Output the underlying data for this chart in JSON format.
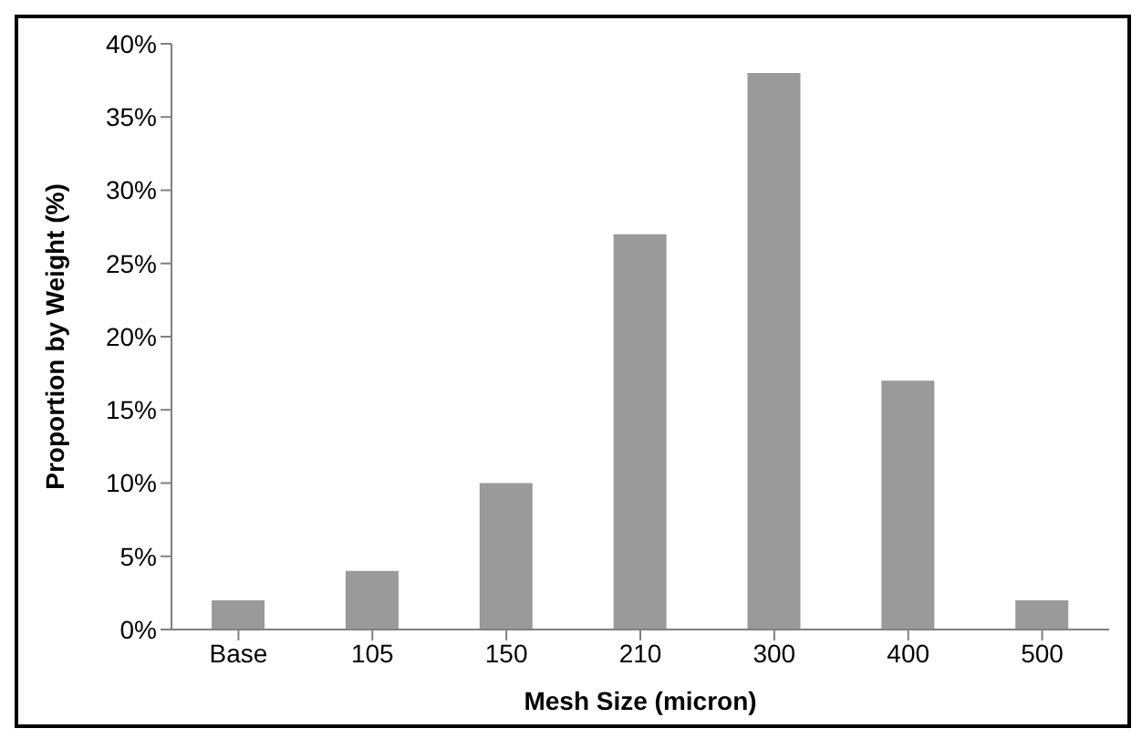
{
  "chart_data": {
    "type": "bar",
    "xlabel": "Mesh Size (micron)",
    "ylabel": "Proportion by Weight (%)",
    "categories": [
      "Base",
      "105",
      "150",
      "210",
      "300",
      "400",
      "500"
    ],
    "values": [
      2,
      4,
      10,
      27,
      38,
      17,
      2
    ],
    "color": "#9a9a9a",
    "ylim": [
      0,
      40
    ],
    "yticks": [
      {
        "value": 0,
        "label": "0%"
      },
      {
        "value": 5,
        "label": "5%"
      },
      {
        "value": 10,
        "label": "10%"
      },
      {
        "value": 15,
        "label": "15%"
      },
      {
        "value": 20,
        "label": "20%"
      },
      {
        "value": 25,
        "label": "25%"
      },
      {
        "value": 30,
        "label": "30%"
      },
      {
        "value": 35,
        "label": "35%"
      },
      {
        "value": 40,
        "label": "40%"
      }
    ],
    "grid": false,
    "legend": false
  }
}
